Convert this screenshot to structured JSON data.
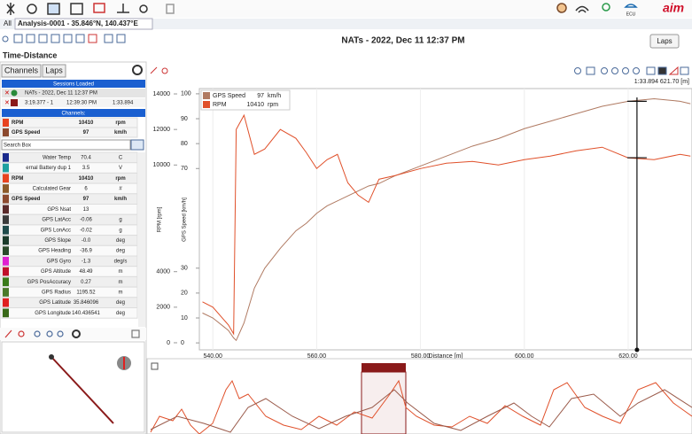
{
  "header": {
    "ecu_label": "ECU",
    "logo": "aim"
  },
  "tabs": {
    "all": "All",
    "analysis": "Analysis-0001 - 35.846°N, 140.437°E"
  },
  "toolbar": {
    "title": "NATs - 2022, Dec 11 12:37 PM",
    "laps_button": "Laps"
  },
  "view_title": "Time-Distance",
  "left_panel": {
    "channels_button": "Channels",
    "laps_button": "Laps",
    "sessions_header": "Sessions Loaded",
    "session": "NATs - 2022, Dec 11 12:37 PM",
    "lap": {
      "lap": "3:19.377 - 1",
      "time": "12:39:30 PM",
      "lap_time": "1:33.894"
    },
    "channels_header": "Channels:",
    "selected": [
      {
        "name": "RPM",
        "value": "10410",
        "unit": "rpm",
        "color": "#e8431f"
      },
      {
        "name": "GPS Speed",
        "value": "97",
        "unit": "km/h",
        "color": "#8c4a2f"
      }
    ],
    "search_label": "Search Box",
    "channels": [
      {
        "name": "Water Temp",
        "value": "70.4",
        "unit": "C",
        "color": "#1a2a8c"
      },
      {
        "name": "ernal Battery dup 1",
        "value": "3.5",
        "unit": "V",
        "color": "#1fa0a0"
      },
      {
        "name": "RPM",
        "value": "10410",
        "unit": "rpm",
        "color": "#e8431f"
      },
      {
        "name": "Calculated Gear",
        "value": "6",
        "unit": "#",
        "color": "#8c5a2a"
      },
      {
        "name": "GPS Speed",
        "value": "97",
        "unit": "km/h",
        "color": "#8c4a2f"
      },
      {
        "name": "GPS Nsat",
        "value": "13",
        "color": "#5a2a2a"
      },
      {
        "name": "GPS LatAcc",
        "value": "-0.06",
        "unit": "g",
        "color": "#3a3a3a"
      },
      {
        "name": "GPS LonAcc",
        "value": "-0.02",
        "unit": "g",
        "color": "#1f4a4a"
      },
      {
        "name": "GPS Slope",
        "value": "-0.0",
        "unit": "deg",
        "color": "#1a3a2a"
      },
      {
        "name": "GPS Heading",
        "value": "-36.9",
        "unit": "deg",
        "color": "#2a4a2a"
      },
      {
        "name": "GPS Gyro",
        "value": "-1.3",
        "unit": "deg/s",
        "color": "#e020d0"
      },
      {
        "name": "GPS Altitude",
        "value": "48.49",
        "unit": "m",
        "color": "#c0102a"
      },
      {
        "name": "GPS PosAccuracy",
        "value": "0.27",
        "unit": "m",
        "color": "#3a7a1a"
      },
      {
        "name": "GPS Radius",
        "value": "1195.52",
        "unit": "m",
        "color": "#4a7a2a"
      },
      {
        "name": "GPS Latitude",
        "value": "35.846096",
        "unit": "deg",
        "color": "#e02020"
      },
      {
        "name": "GPS Longitude",
        "value": "140.436541",
        "unit": "deg",
        "color": "#3a6a1a"
      }
    ]
  },
  "chart_data": {
    "type": "line",
    "xlabel": "Distance [m]",
    "ylabel": "RPM [rpm]",
    "y2label": "GPS Speed [km/h]",
    "x": [
      538,
      540,
      543,
      544,
      544.5,
      546,
      548,
      550,
      553,
      556,
      558,
      560,
      562,
      564,
      566,
      568,
      570,
      572,
      575,
      580,
      585,
      590,
      595,
      600,
      605,
      610,
      615,
      620,
      625,
      630,
      632
    ],
    "xlim": [
      537.4,
      632.3
    ],
    "xticks": [
      {
        "value": 540,
        "label": "540.00"
      },
      {
        "value": 560,
        "label": "560.00"
      },
      {
        "value": 580,
        "label": "580.00"
      },
      {
        "value": 600,
        "label": "600.00"
      },
      {
        "value": 620,
        "label": "620.00"
      }
    ],
    "ylim": [
      -400,
      14300
    ],
    "yticks": [
      0,
      2000,
      4000,
      10000,
      12000,
      14000
    ],
    "y2lim": [
      -2.8,
      102.1
    ],
    "y2ticks": [
      0,
      10,
      20,
      30,
      70,
      80,
      90,
      100
    ],
    "grid": true,
    "series": [
      {
        "name": "GPS Speed",
        "color": "#b07a62",
        "axis": "y2",
        "cursor_value": 97,
        "unit": "km/h",
        "values": [
          12,
          10,
          5,
          2,
          1,
          8,
          22,
          30,
          38,
          45,
          48,
          52,
          55,
          57,
          59,
          61,
          63,
          64,
          67,
          71,
          75,
          79,
          82,
          86,
          89,
          92,
          95,
          97,
          98,
          97,
          96
        ]
      },
      {
        "name": "RPM",
        "color": "#e0502a",
        "cursor_value": 10410,
        "unit": "rpm",
        "values": [
          2300,
          2000,
          1000,
          500,
          12000,
          12800,
          10600,
          10900,
          12000,
          11500,
          10700,
          9800,
          10300,
          10600,
          9000,
          8300,
          7900,
          9200,
          9400,
          9800,
          10100,
          10200,
          10000,
          10300,
          10500,
          10800,
          11000,
          10400,
          10300,
          10600,
          10500
        ]
      }
    ],
    "cursor": {
      "value": 621.7,
      "label": "1:33.894   621.70 [m]"
    }
  }
}
